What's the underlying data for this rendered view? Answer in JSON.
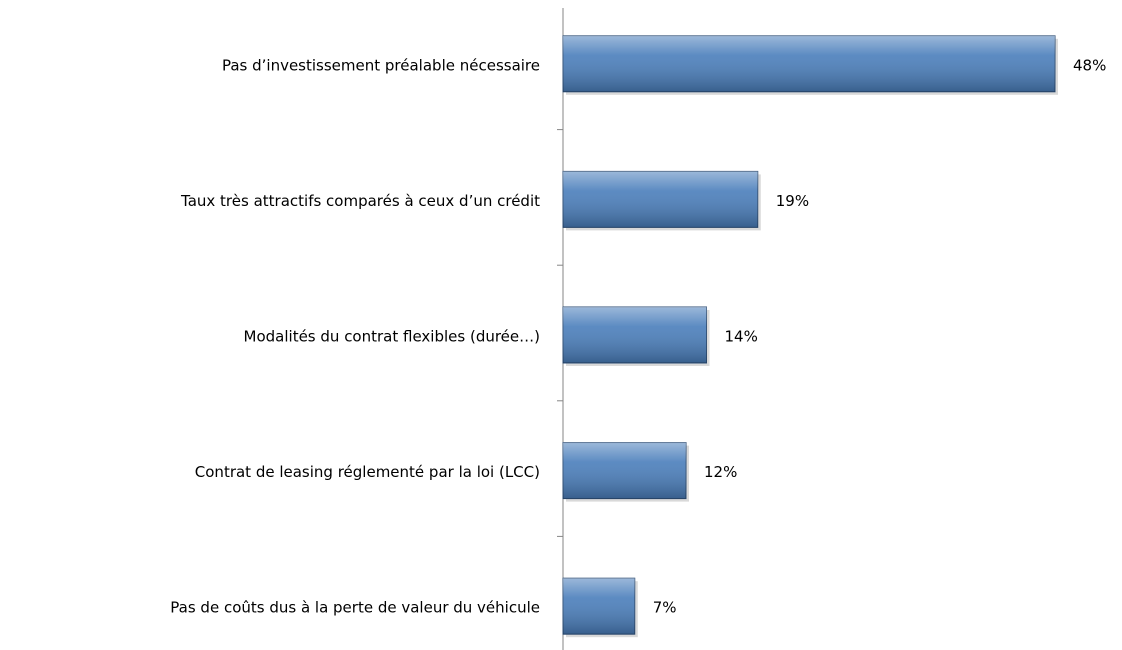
{
  "chart_data": {
    "type": "bar",
    "orientation": "horizontal",
    "categories": [
      "Pas d’investissement préalable nécessaire",
      "Taux très attractifs comparés à ceux d’un crédit",
      "Modalités du contrat flexibles (durée…)",
      "Contrat de leasing réglementé par la loi (LCC)",
      "Pas de coûts dus à la perte de valeur du véhicule"
    ],
    "values": [
      48,
      19,
      14,
      12,
      7
    ],
    "value_labels": [
      "48%",
      "19%",
      "14%",
      "12%",
      "7%"
    ],
    "color": "#4a7ebb"
  }
}
